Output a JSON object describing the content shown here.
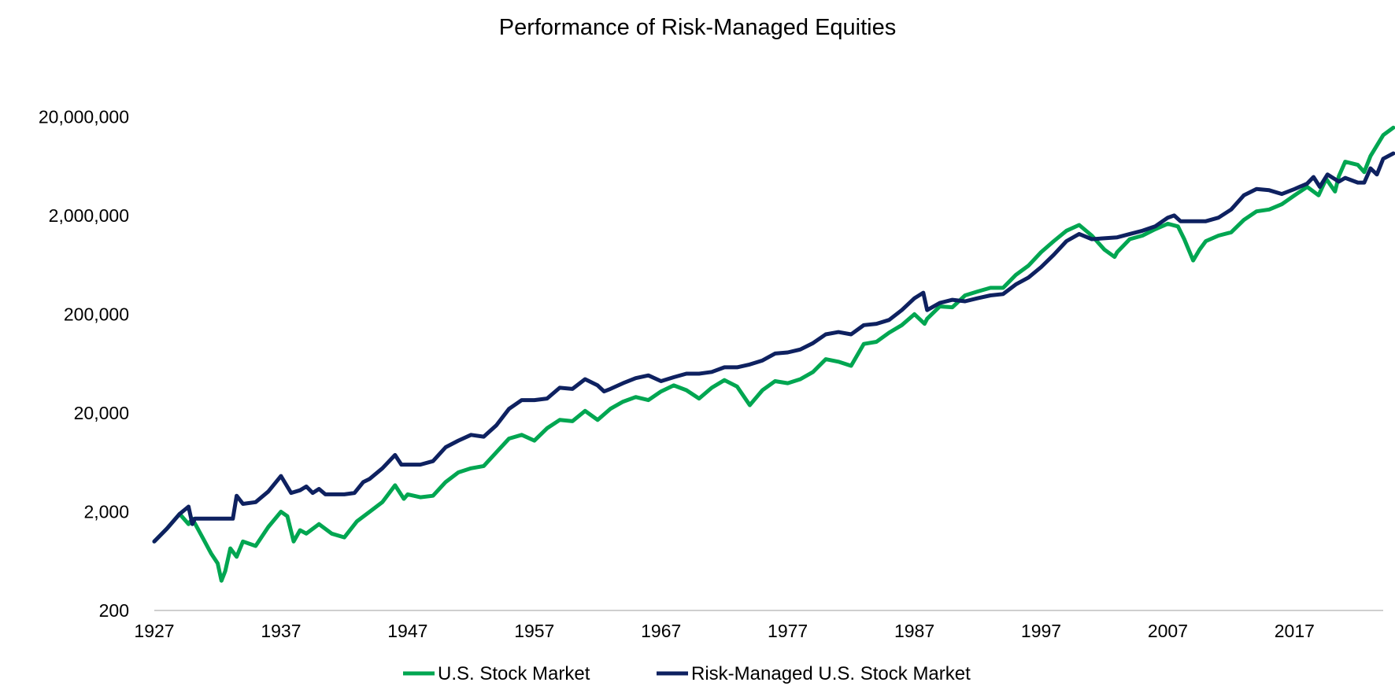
{
  "chart_data": {
    "type": "line",
    "title": "Performance of Risk-Managed Equities",
    "xlabel": "",
    "ylabel": "",
    "y_scale": "log",
    "ylim": [
      200,
      28000000
    ],
    "xlim": [
      1927,
      2024
    ],
    "grid": false,
    "legend_position": "bottom-center",
    "x_ticks": [
      "1927",
      "1937",
      "1947",
      "1957",
      "1967",
      "1977",
      "1987",
      "1997",
      "2007",
      "2017"
    ],
    "y_ticks": [
      {
        "value": 20000000,
        "label": "20,000,000"
      },
      {
        "value": 2000000,
        "label": "2,000,000"
      },
      {
        "value": 200000,
        "label": "200,000"
      },
      {
        "value": 20000,
        "label": "20,000"
      },
      {
        "value": 2000,
        "label": "2,000"
      },
      {
        "value": 200,
        "label": "200"
      }
    ],
    "series": [
      {
        "name": "U.S. Stock Market",
        "color": "#00a651",
        "points": [
          [
            1927.0,
            1000
          ],
          [
            1928.0,
            1350
          ],
          [
            1929.0,
            1900
          ],
          [
            1929.7,
            1500
          ],
          [
            1930.0,
            1700
          ],
          [
            1930.8,
            1100
          ],
          [
            1931.5,
            750
          ],
          [
            1932.0,
            600
          ],
          [
            1932.3,
            400
          ],
          [
            1932.6,
            500
          ],
          [
            1933.0,
            850
          ],
          [
            1933.5,
            700
          ],
          [
            1934.0,
            1000
          ],
          [
            1935.0,
            900
          ],
          [
            1936.0,
            1400
          ],
          [
            1937.0,
            2000
          ],
          [
            1937.5,
            1800
          ],
          [
            1938.0,
            1000
          ],
          [
            1938.5,
            1300
          ],
          [
            1939.0,
            1200
          ],
          [
            1940.0,
            1500
          ],
          [
            1941.0,
            1200
          ],
          [
            1942.0,
            1100
          ],
          [
            1943.0,
            1600
          ],
          [
            1944.0,
            2000
          ],
          [
            1945.0,
            2500
          ],
          [
            1946.0,
            3700
          ],
          [
            1946.7,
            2700
          ],
          [
            1947.0,
            3000
          ],
          [
            1948.0,
            2800
          ],
          [
            1949.0,
            2900
          ],
          [
            1950.0,
            4000
          ],
          [
            1951.0,
            5000
          ],
          [
            1952.0,
            5500
          ],
          [
            1953.0,
            5800
          ],
          [
            1954.0,
            8000
          ],
          [
            1955.0,
            11000
          ],
          [
            1956.0,
            12000
          ],
          [
            1957.0,
            10500
          ],
          [
            1958.0,
            14000
          ],
          [
            1959.0,
            17000
          ],
          [
            1960.0,
            16500
          ],
          [
            1961.0,
            21000
          ],
          [
            1962.0,
            17000
          ],
          [
            1963.0,
            22000
          ],
          [
            1964.0,
            26000
          ],
          [
            1965.0,
            29000
          ],
          [
            1966.0,
            27000
          ],
          [
            1967.0,
            33000
          ],
          [
            1968.0,
            38000
          ],
          [
            1969.0,
            34000
          ],
          [
            1970.0,
            28000
          ],
          [
            1971.0,
            36000
          ],
          [
            1972.0,
            43000
          ],
          [
            1973.0,
            37000
          ],
          [
            1974.0,
            24000
          ],
          [
            1975.0,
            34000
          ],
          [
            1976.0,
            42000
          ],
          [
            1977.0,
            40000
          ],
          [
            1978.0,
            44000
          ],
          [
            1979.0,
            52000
          ],
          [
            1980.0,
            70000
          ],
          [
            1981.0,
            66000
          ],
          [
            1982.0,
            60000
          ],
          [
            1983.0,
            100000
          ],
          [
            1984.0,
            105000
          ],
          [
            1985.0,
            130000
          ],
          [
            1986.0,
            155000
          ],
          [
            1987.0,
            200000
          ],
          [
            1987.8,
            160000
          ],
          [
            1988.0,
            180000
          ],
          [
            1989.0,
            240000
          ],
          [
            1990.0,
            235000
          ],
          [
            1991.0,
            310000
          ],
          [
            1992.0,
            340000
          ],
          [
            1993.0,
            370000
          ],
          [
            1994.0,
            370000
          ],
          [
            1995.0,
            500000
          ],
          [
            1996.0,
            620000
          ],
          [
            1997.0,
            850000
          ],
          [
            1998.0,
            1100000
          ],
          [
            1999.0,
            1400000
          ],
          [
            2000.0,
            1600000
          ],
          [
            2001.0,
            1250000
          ],
          [
            2002.0,
            900000
          ],
          [
            2002.8,
            760000
          ],
          [
            2003.0,
            850000
          ],
          [
            2004.0,
            1150000
          ],
          [
            2005.0,
            1250000
          ],
          [
            2006.0,
            1450000
          ],
          [
            2007.0,
            1650000
          ],
          [
            2007.8,
            1550000
          ],
          [
            2008.3,
            1150000
          ],
          [
            2009.0,
            700000
          ],
          [
            2009.5,
            900000
          ],
          [
            2010.0,
            1100000
          ],
          [
            2011.0,
            1250000
          ],
          [
            2012.0,
            1350000
          ],
          [
            2013.0,
            1800000
          ],
          [
            2014.0,
            2200000
          ],
          [
            2015.0,
            2300000
          ],
          [
            2016.0,
            2600000
          ],
          [
            2017.0,
            3200000
          ],
          [
            2018.0,
            3900000
          ],
          [
            2018.9,
            3200000
          ],
          [
            2019.5,
            4700000
          ],
          [
            2020.2,
            3500000
          ],
          [
            2020.5,
            5000000
          ],
          [
            2021.0,
            7000000
          ],
          [
            2022.0,
            6500000
          ],
          [
            2022.5,
            5500000
          ],
          [
            2023.0,
            8000000
          ],
          [
            2024.0,
            13000000
          ],
          [
            2024.8,
            15500000
          ]
        ]
      },
      {
        "name": "Risk-Managed U.S. Stock Market",
        "color": "#0e2160",
        "points": [
          [
            1927.0,
            1000
          ],
          [
            1928.0,
            1350
          ],
          [
            1929.0,
            1900
          ],
          [
            1929.7,
            2250
          ],
          [
            1930.0,
            1500
          ],
          [
            1930.2,
            1700
          ],
          [
            1933.2,
            1700
          ],
          [
            1933.5,
            2900
          ],
          [
            1934.0,
            2400
          ],
          [
            1935.0,
            2500
          ],
          [
            1936.0,
            3200
          ],
          [
            1937.0,
            4600
          ],
          [
            1937.8,
            3100
          ],
          [
            1938.5,
            3300
          ],
          [
            1939.0,
            3600
          ],
          [
            1939.5,
            3100
          ],
          [
            1940.0,
            3400
          ],
          [
            1940.5,
            3000
          ],
          [
            1942.0,
            3000
          ],
          [
            1942.8,
            3100
          ],
          [
            1943.5,
            4000
          ],
          [
            1944.0,
            4300
          ],
          [
            1945.0,
            5500
          ],
          [
            1946.0,
            7500
          ],
          [
            1946.5,
            6000
          ],
          [
            1948.0,
            6000
          ],
          [
            1949.0,
            6500
          ],
          [
            1950.0,
            9000
          ],
          [
            1951.0,
            10500
          ],
          [
            1952.0,
            12000
          ],
          [
            1953.0,
            11500
          ],
          [
            1954.0,
            15000
          ],
          [
            1955.0,
            22000
          ],
          [
            1956.0,
            27000
          ],
          [
            1957.0,
            27000
          ],
          [
            1958.0,
            28000
          ],
          [
            1959.0,
            36000
          ],
          [
            1960.0,
            35000
          ],
          [
            1961.0,
            44000
          ],
          [
            1962.0,
            38000
          ],
          [
            1962.5,
            33000
          ],
          [
            1963.0,
            35000
          ],
          [
            1964.0,
            40000
          ],
          [
            1965.0,
            45000
          ],
          [
            1966.0,
            48000
          ],
          [
            1967.0,
            42000
          ],
          [
            1968.0,
            46000
          ],
          [
            1969.0,
            50000
          ],
          [
            1970.0,
            50000
          ],
          [
            1971.0,
            52000
          ],
          [
            1972.0,
            58000
          ],
          [
            1973.0,
            58000
          ],
          [
            1974.0,
            62000
          ],
          [
            1975.0,
            68000
          ],
          [
            1976.0,
            80000
          ],
          [
            1977.0,
            82000
          ],
          [
            1978.0,
            88000
          ],
          [
            1979.0,
            102000
          ],
          [
            1980.0,
            125000
          ],
          [
            1981.0,
            132000
          ],
          [
            1982.0,
            125000
          ],
          [
            1983.0,
            155000
          ],
          [
            1984.0,
            160000
          ],
          [
            1985.0,
            175000
          ],
          [
            1986.0,
            220000
          ],
          [
            1987.0,
            290000
          ],
          [
            1987.7,
            330000
          ],
          [
            1988.0,
            220000
          ],
          [
            1989.0,
            260000
          ],
          [
            1990.0,
            280000
          ],
          [
            1991.0,
            270000
          ],
          [
            1992.0,
            290000
          ],
          [
            1993.0,
            310000
          ],
          [
            1994.0,
            320000
          ],
          [
            1995.0,
            400000
          ],
          [
            1996.0,
            470000
          ],
          [
            1997.0,
            600000
          ],
          [
            1998.0,
            800000
          ],
          [
            1999.0,
            1100000
          ],
          [
            2000.0,
            1300000
          ],
          [
            2001.0,
            1150000
          ],
          [
            2003.0,
            1200000
          ],
          [
            2004.0,
            1300000
          ],
          [
            2005.0,
            1400000
          ],
          [
            2006.0,
            1550000
          ],
          [
            2007.0,
            1900000
          ],
          [
            2007.5,
            2000000
          ],
          [
            2008.0,
            1750000
          ],
          [
            2010.0,
            1750000
          ],
          [
            2011.0,
            1900000
          ],
          [
            2012.0,
            2300000
          ],
          [
            2013.0,
            3200000
          ],
          [
            2014.0,
            3700000
          ],
          [
            2015.0,
            3600000
          ],
          [
            2016.0,
            3300000
          ],
          [
            2017.0,
            3700000
          ],
          [
            2018.0,
            4200000
          ],
          [
            2018.5,
            4900000
          ],
          [
            2019.0,
            3900000
          ],
          [
            2019.6,
            5200000
          ],
          [
            2020.5,
            4400000
          ],
          [
            2021.0,
            4800000
          ],
          [
            2022.0,
            4300000
          ],
          [
            2022.5,
            4300000
          ],
          [
            2023.0,
            6000000
          ],
          [
            2023.5,
            5200000
          ],
          [
            2024.0,
            7500000
          ],
          [
            2024.8,
            8500000
          ]
        ]
      }
    ]
  }
}
